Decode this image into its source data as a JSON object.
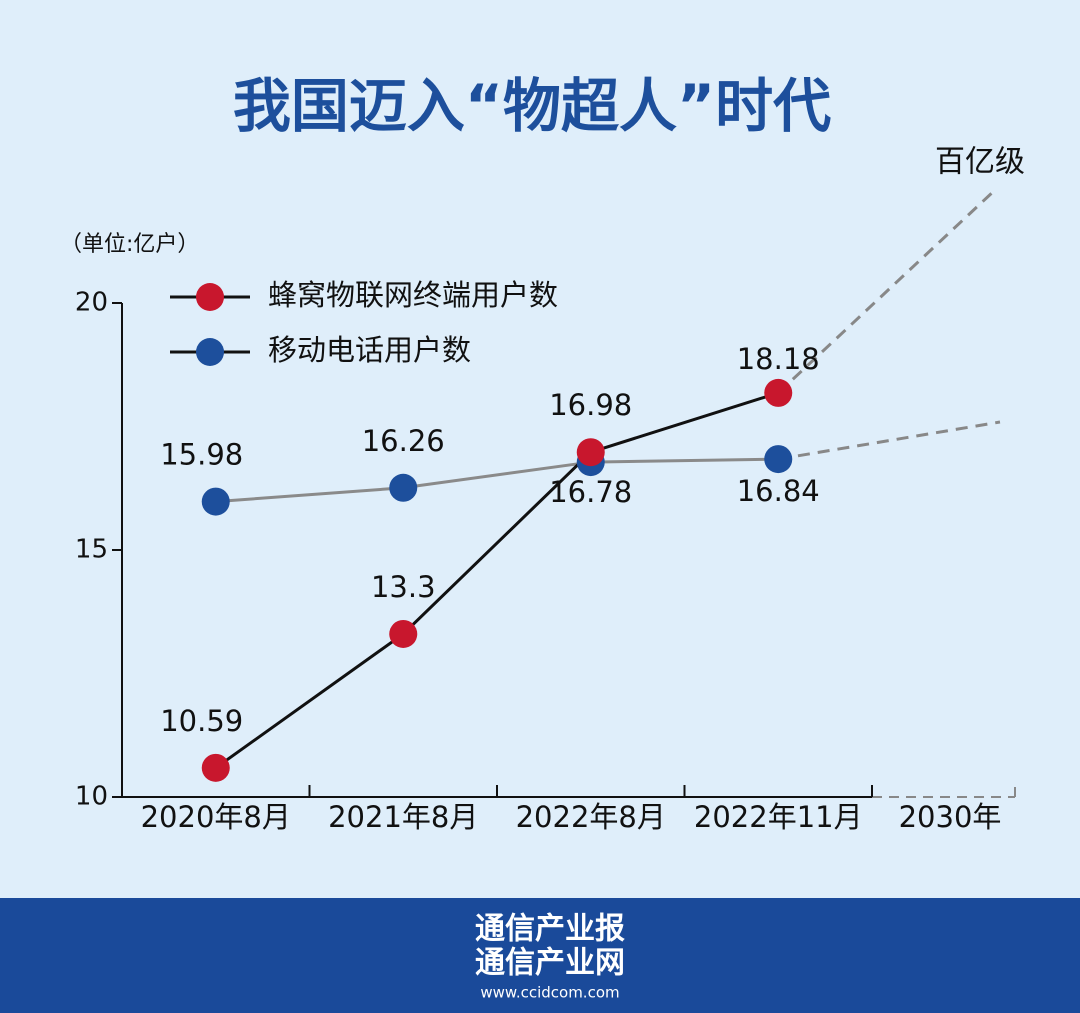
{
  "chart_data": {
    "type": "line",
    "title": "我国迈入“物超人”时代",
    "unit_label": "（单位:亿户）",
    "annotation": "百亿级",
    "categories": [
      "2020年8月",
      "2021年8月",
      "2022年8月",
      "2022年11月",
      "2030年"
    ],
    "series": [
      {
        "name": "蜂窝物联网终端用户数",
        "color": "#c8172d",
        "line_color": "#111111",
        "values": [
          10.59,
          13.3,
          16.98,
          18.18,
          null
        ]
      },
      {
        "name": "移动电话用户数",
        "color": "#1d4f9c",
        "line_color": "#8a8a8a",
        "values": [
          15.98,
          16.26,
          16.78,
          16.84,
          null
        ]
      }
    ],
    "ylim": [
      10,
      20
    ],
    "yticks": [
      10,
      15,
      20
    ],
    "grid": false
  },
  "footer": {
    "line1": "通信产业报",
    "line2": "通信产业网",
    "url": "www.ccidcom.com"
  }
}
